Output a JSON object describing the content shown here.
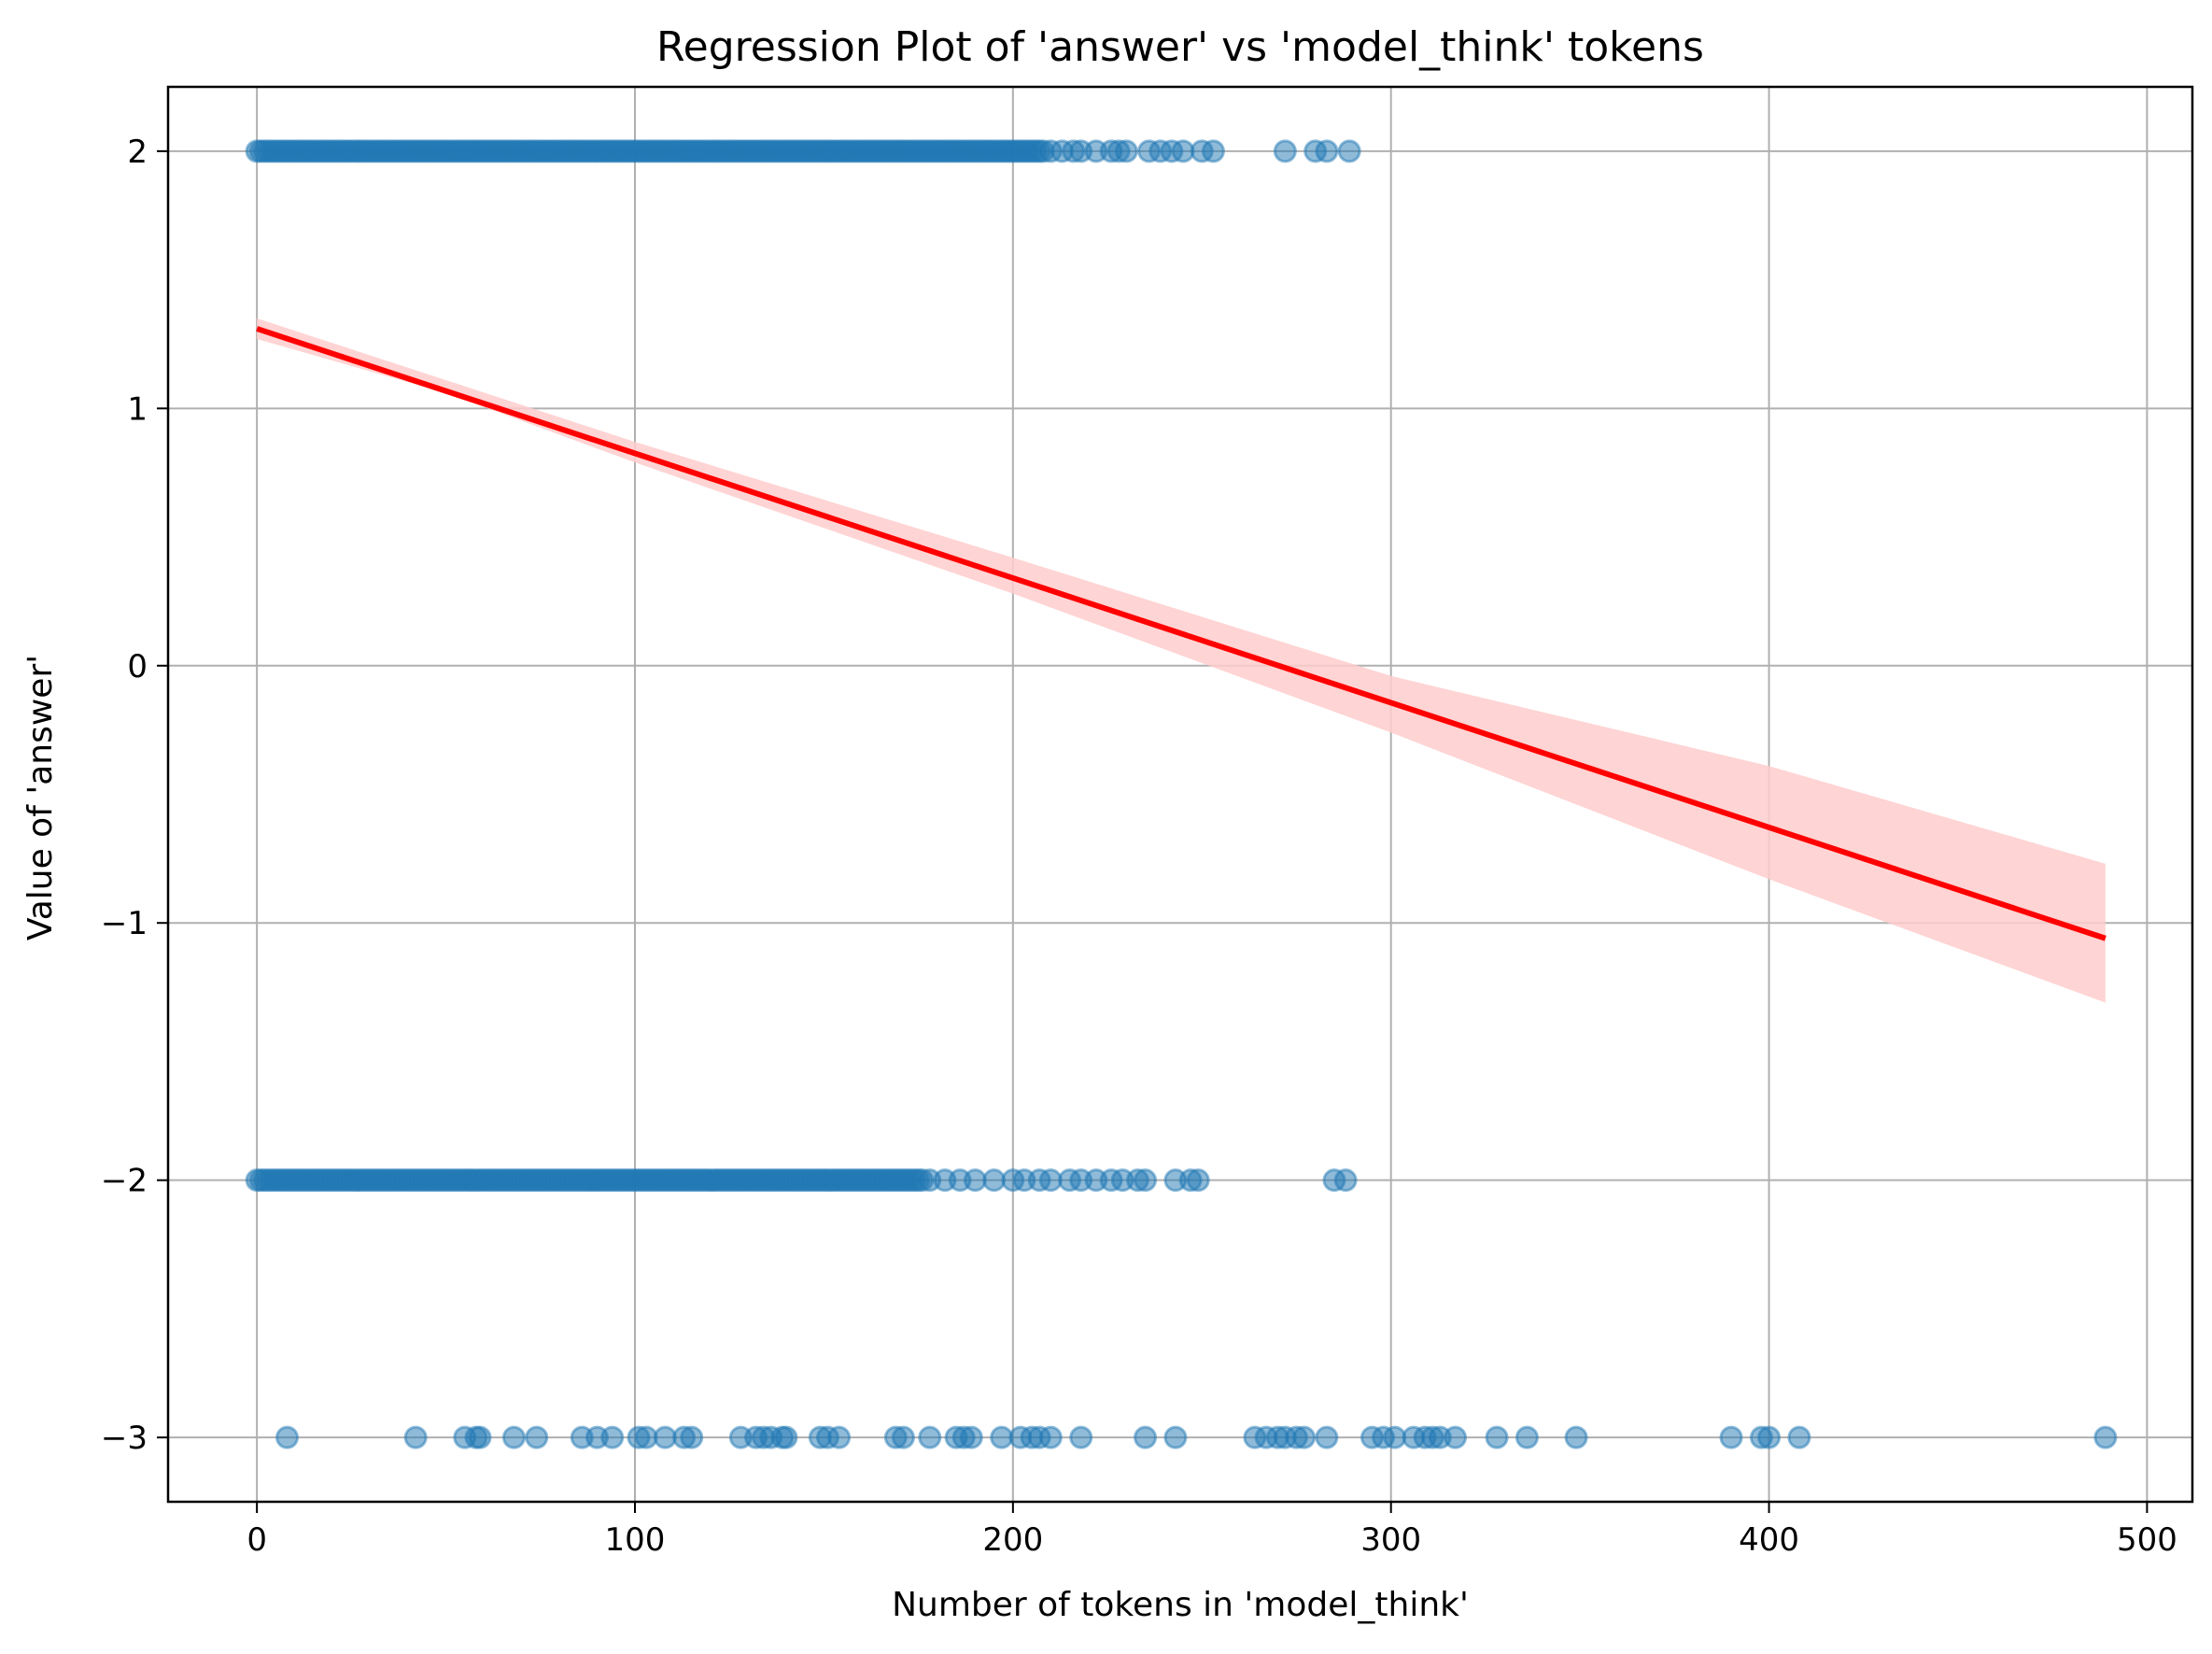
{
  "chart_data": {
    "type": "scatter",
    "title": "Regression Plot of 'answer' vs 'model_think' tokens",
    "xlabel": "Number of tokens in 'model_think'",
    "ylabel": "Value of 'answer'",
    "xlim": [
      -23.5,
      512
    ],
    "ylim": [
      -3.25,
      2.25
    ],
    "x_ticks": [
      0,
      100,
      200,
      300,
      400,
      500
    ],
    "y_ticks": [
      2,
      1,
      0,
      -1,
      -2,
      -3
    ],
    "x_tick_labels": [
      "0",
      "100",
      "200",
      "300",
      "400",
      "500"
    ],
    "y_tick_labels": [
      "2",
      "1",
      "0",
      "−1",
      "−2",
      "−3"
    ],
    "grid": true,
    "colors": {
      "points": "#1f77b4",
      "regression_line": "#ff0000",
      "confidence_band": "#ffcccc"
    },
    "series": [
      {
        "kind": "points",
        "dense_ranges": [
          {
            "y": 2,
            "x_from": 0,
            "x_to": 208
          },
          {
            "y": -2,
            "x_from": 0,
            "x_to": 176
          }
        ],
        "points": [
          {
            "x": 210,
            "y": 2
          },
          {
            "x": 213,
            "y": 2
          },
          {
            "x": 216,
            "y": 2
          },
          {
            "x": 218,
            "y": 2
          },
          {
            "x": 222,
            "y": 2
          },
          {
            "x": 226,
            "y": 2
          },
          {
            "x": 228,
            "y": 2
          },
          {
            "x": 230,
            "y": 2
          },
          {
            "x": 236,
            "y": 2
          },
          {
            "x": 239,
            "y": 2
          },
          {
            "x": 242,
            "y": 2
          },
          {
            "x": 245,
            "y": 2
          },
          {
            "x": 250,
            "y": 2
          },
          {
            "x": 253,
            "y": 2
          },
          {
            "x": 272,
            "y": 2
          },
          {
            "x": 280,
            "y": 2
          },
          {
            "x": 283,
            "y": 2
          },
          {
            "x": 289,
            "y": 2
          },
          {
            "x": 178,
            "y": -2
          },
          {
            "x": 182,
            "y": -2
          },
          {
            "x": 186,
            "y": -2
          },
          {
            "x": 190,
            "y": -2
          },
          {
            "x": 195,
            "y": -2
          },
          {
            "x": 200,
            "y": -2
          },
          {
            "x": 203,
            "y": -2
          },
          {
            "x": 207,
            "y": -2
          },
          {
            "x": 210,
            "y": -2
          },
          {
            "x": 215,
            "y": -2
          },
          {
            "x": 218,
            "y": -2
          },
          {
            "x": 222,
            "y": -2
          },
          {
            "x": 226,
            "y": -2
          },
          {
            "x": 229,
            "y": -2
          },
          {
            "x": 233,
            "y": -2
          },
          {
            "x": 235,
            "y": -2
          },
          {
            "x": 243,
            "y": -2
          },
          {
            "x": 247,
            "y": -2
          },
          {
            "x": 249,
            "y": -2
          },
          {
            "x": 285,
            "y": -2
          },
          {
            "x": 288,
            "y": -2
          },
          {
            "x": 8,
            "y": -3
          },
          {
            "x": 42,
            "y": -3
          },
          {
            "x": 55,
            "y": -3
          },
          {
            "x": 58,
            "y": -3
          },
          {
            "x": 59,
            "y": -3
          },
          {
            "x": 68,
            "y": -3
          },
          {
            "x": 74,
            "y": -3
          },
          {
            "x": 86,
            "y": -3
          },
          {
            "x": 90,
            "y": -3
          },
          {
            "x": 94,
            "y": -3
          },
          {
            "x": 101,
            "y": -3
          },
          {
            "x": 103,
            "y": -3
          },
          {
            "x": 108,
            "y": -3
          },
          {
            "x": 113,
            "y": -3
          },
          {
            "x": 115,
            "y": -3
          },
          {
            "x": 128,
            "y": -3
          },
          {
            "x": 132,
            "y": -3
          },
          {
            "x": 134,
            "y": -3
          },
          {
            "x": 136,
            "y": -3
          },
          {
            "x": 139,
            "y": -3
          },
          {
            "x": 140,
            "y": -3
          },
          {
            "x": 149,
            "y": -3
          },
          {
            "x": 151,
            "y": -3
          },
          {
            "x": 154,
            "y": -3
          },
          {
            "x": 169,
            "y": -3
          },
          {
            "x": 171,
            "y": -3
          },
          {
            "x": 178,
            "y": -3
          },
          {
            "x": 185,
            "y": -3
          },
          {
            "x": 187,
            "y": -3
          },
          {
            "x": 189,
            "y": -3
          },
          {
            "x": 197,
            "y": -3
          },
          {
            "x": 202,
            "y": -3
          },
          {
            "x": 205,
            "y": -3
          },
          {
            "x": 207,
            "y": -3
          },
          {
            "x": 210,
            "y": -3
          },
          {
            "x": 218,
            "y": -3
          },
          {
            "x": 235,
            "y": -3
          },
          {
            "x": 243,
            "y": -3
          },
          {
            "x": 264,
            "y": -3
          },
          {
            "x": 267,
            "y": -3
          },
          {
            "x": 270,
            "y": -3
          },
          {
            "x": 272,
            "y": -3
          },
          {
            "x": 275,
            "y": -3
          },
          {
            "x": 277,
            "y": -3
          },
          {
            "x": 283,
            "y": -3
          },
          {
            "x": 295,
            "y": -3
          },
          {
            "x": 298,
            "y": -3
          },
          {
            "x": 301,
            "y": -3
          },
          {
            "x": 306,
            "y": -3
          },
          {
            "x": 309,
            "y": -3
          },
          {
            "x": 311,
            "y": -3
          },
          {
            "x": 313,
            "y": -3
          },
          {
            "x": 317,
            "y": -3
          },
          {
            "x": 328,
            "y": -3
          },
          {
            "x": 336,
            "y": -3
          },
          {
            "x": 349,
            "y": -3
          },
          {
            "x": 390,
            "y": -3
          },
          {
            "x": 398,
            "y": -3
          },
          {
            "x": 400,
            "y": -3
          },
          {
            "x": 408,
            "y": -3
          },
          {
            "x": 489,
            "y": -3
          }
        ]
      },
      {
        "kind": "regression",
        "line": [
          {
            "x": 0,
            "y": 1.31
          },
          {
            "x": 489,
            "y": -1.06
          }
        ],
        "band_upper": [
          {
            "x": 0,
            "y": 1.35
          },
          {
            "x": 50,
            "y": 1.11
          },
          {
            "x": 100,
            "y": 0.87
          },
          {
            "x": 200,
            "y": 0.42
          },
          {
            "x": 300,
            "y": -0.04
          },
          {
            "x": 400,
            "y": -0.39
          },
          {
            "x": 489,
            "y": -0.77
          }
        ],
        "band_lower": [
          {
            "x": 0,
            "y": 1.27
          },
          {
            "x": 50,
            "y": 1.06
          },
          {
            "x": 100,
            "y": 0.79
          },
          {
            "x": 200,
            "y": 0.28
          },
          {
            "x": 300,
            "y": -0.26
          },
          {
            "x": 400,
            "y": -0.83
          },
          {
            "x": 489,
            "y": -1.31
          }
        ]
      }
    ]
  }
}
